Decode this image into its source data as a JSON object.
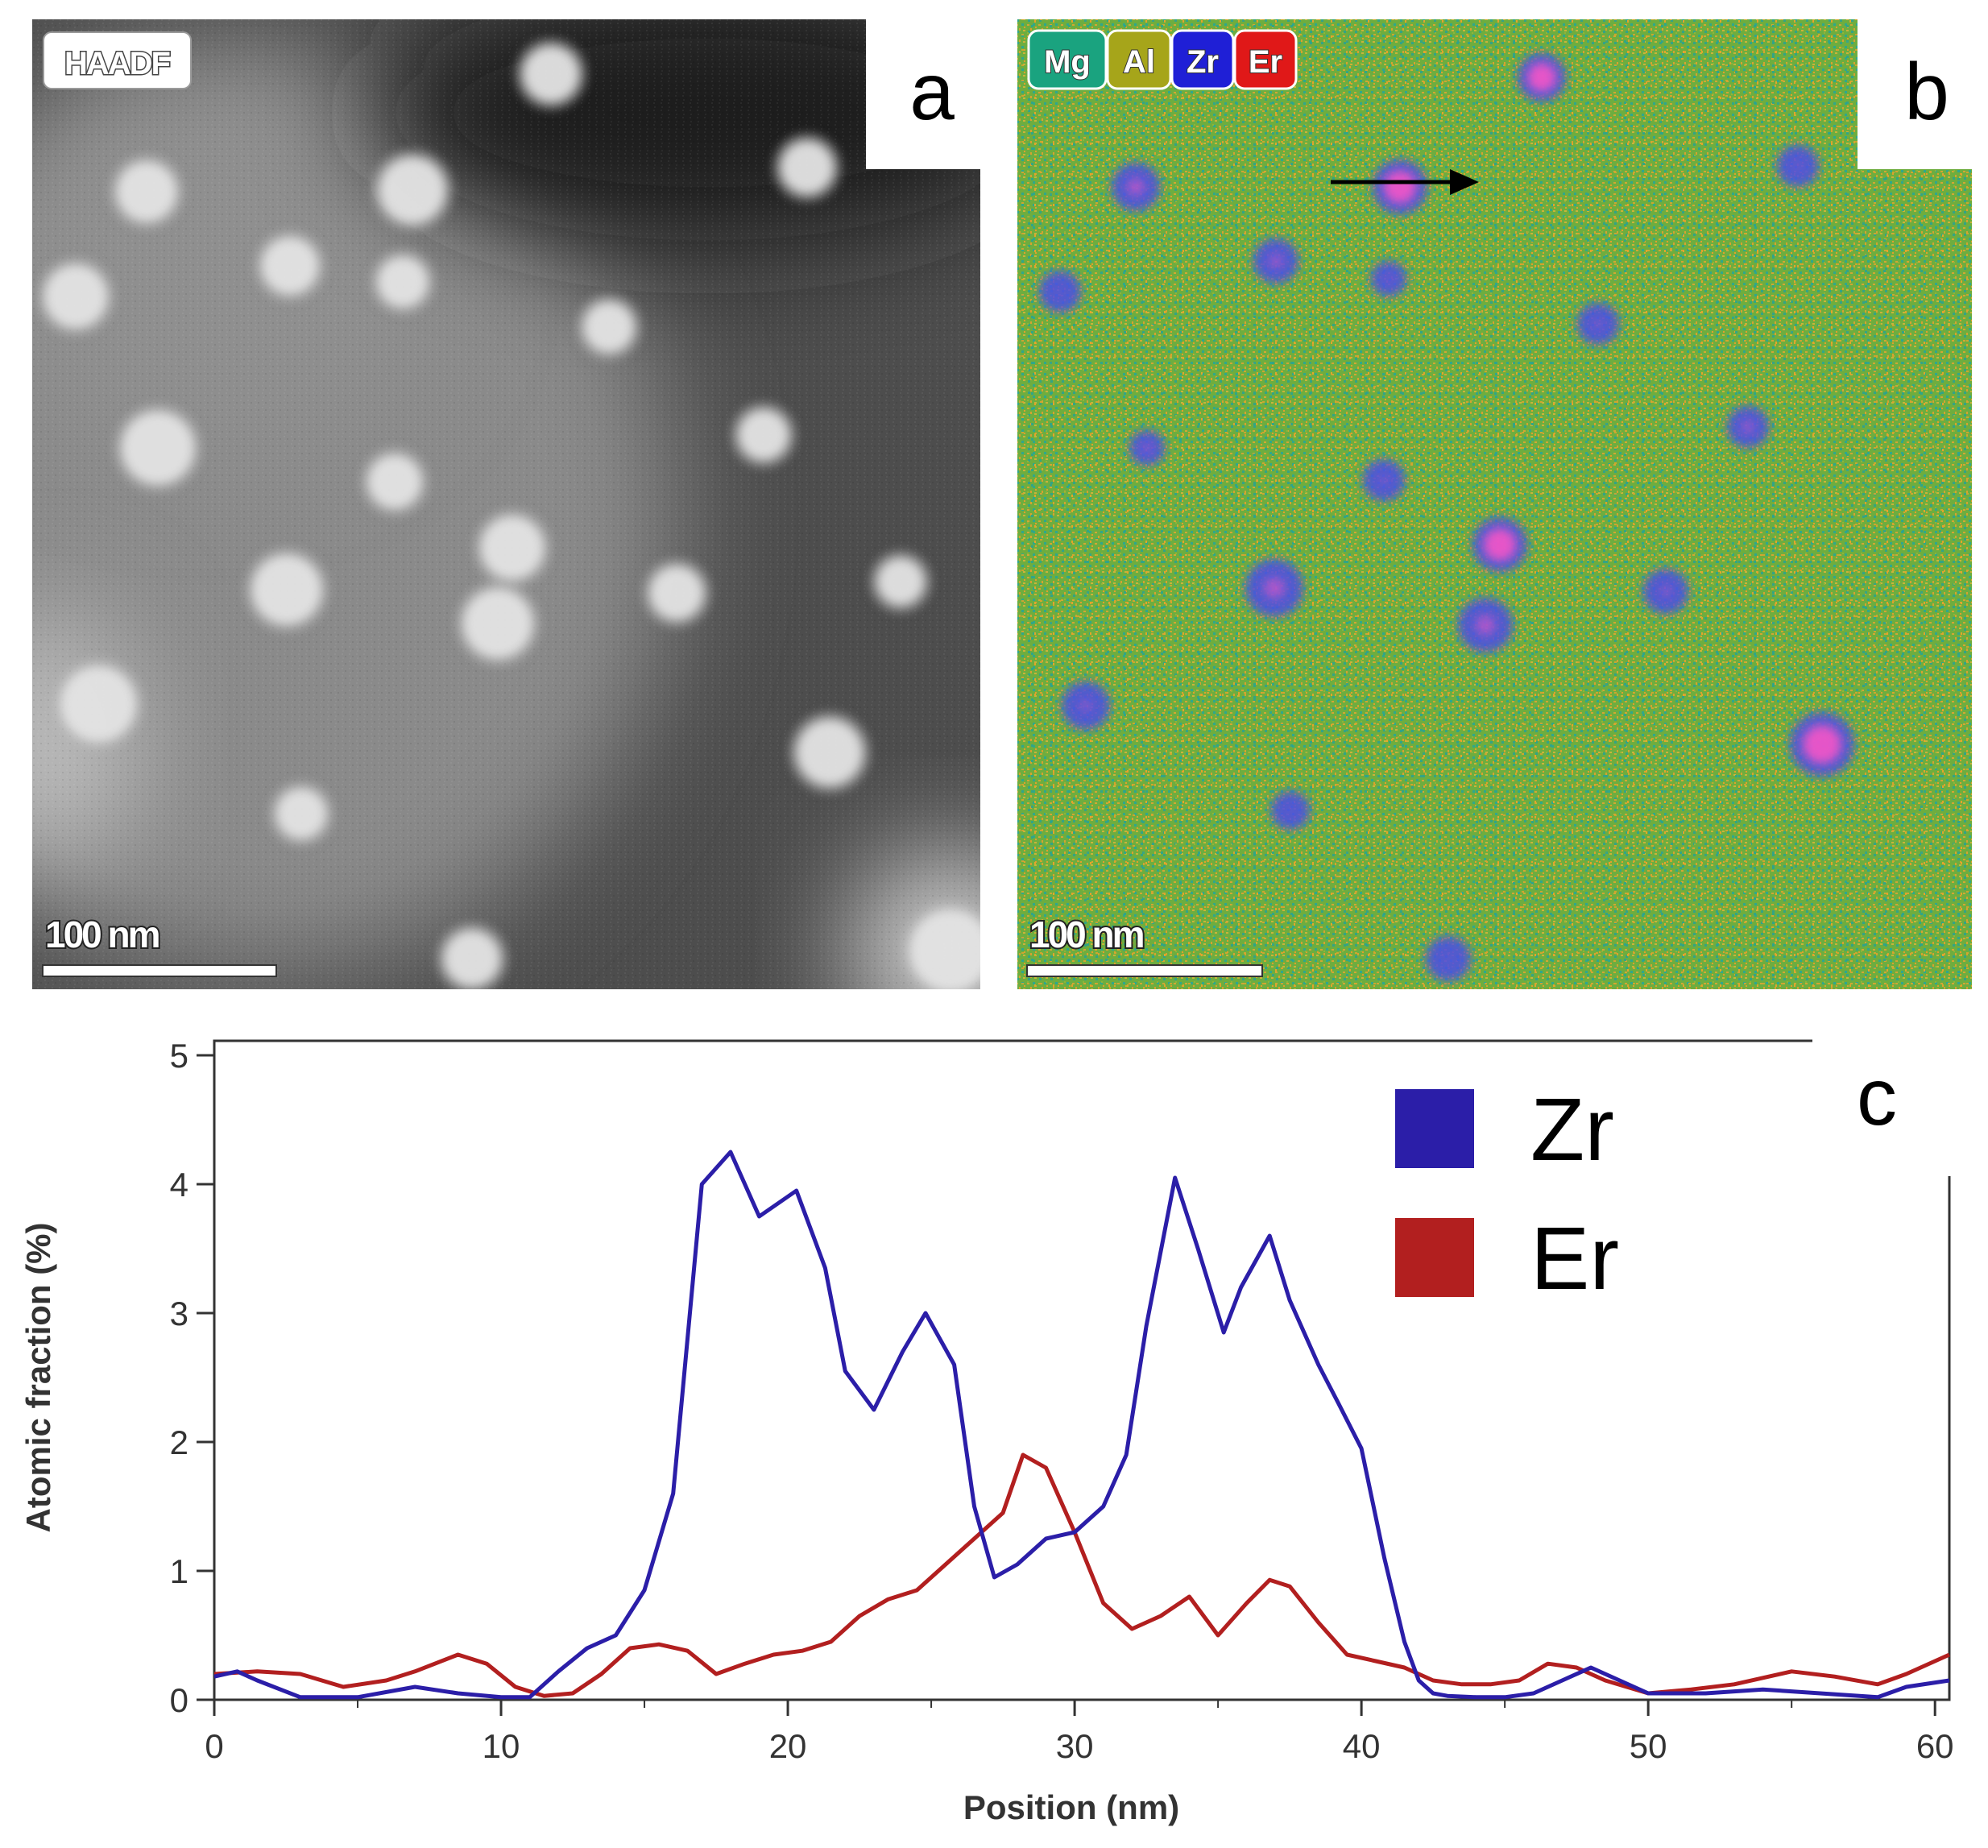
{
  "panel_a": {
    "letter": "a",
    "mode_badge": "HAADF",
    "scale_bar_label": "100 nm"
  },
  "panel_b": {
    "letter": "b",
    "element_badges": [
      {
        "label": "Mg",
        "color": "#1aa37f"
      },
      {
        "label": "Al",
        "color": "#a6a51a"
      },
      {
        "label": "Zr",
        "color": "#1f1fd6"
      },
      {
        "label": "Er",
        "color": "#e01818"
      }
    ],
    "scale_bar_label": "100 nm",
    "background_colors": {
      "green": "#5faa3c",
      "yellow": "#c9a834",
      "teal": "#2ea68a"
    },
    "zr_color": "#4b4ee6",
    "er_color": "#ff55c8"
  },
  "panel_c": {
    "letter": "c"
  },
  "chart_data": {
    "type": "line",
    "xlabel": "Position (nm)",
    "ylabel": "Atomic fraction (%)",
    "xlim": [
      0,
      60.5
    ],
    "ylim": [
      0,
      5
    ],
    "xticks": [
      "0",
      "10",
      "20",
      "30",
      "40",
      "50",
      "60"
    ],
    "yticks": [
      "0",
      "1",
      "2",
      "3",
      "4",
      "5"
    ],
    "legend_position": "top-right",
    "series": [
      {
        "name": "Zr",
        "color": "#2b1ea8",
        "x": [
          0,
          0.8,
          1.5,
          3,
          5,
          7,
          8.5,
          10,
          11,
          12,
          13,
          14,
          15,
          16,
          17,
          18,
          19,
          20.3,
          21.3,
          22,
          23,
          24,
          24.8,
          25.8,
          26.5,
          27.2,
          28,
          29,
          30,
          31,
          31.8,
          32.5,
          33.5,
          34.3,
          35.2,
          35.8,
          36.8,
          37.5,
          38.5,
          39.2,
          40,
          40.8,
          41.5,
          42,
          42.5,
          43,
          44,
          45,
          46,
          47,
          48,
          49,
          50,
          52,
          54,
          56,
          58,
          59,
          60.5
        ],
        "y": [
          0.18,
          0.22,
          0.15,
          0.02,
          0.02,
          0.1,
          0.05,
          0.02,
          0.02,
          0.22,
          0.4,
          0.5,
          0.85,
          1.6,
          4.0,
          4.25,
          3.75,
          3.95,
          3.35,
          2.55,
          2.25,
          2.7,
          3.0,
          2.6,
          1.5,
          0.95,
          1.05,
          1.25,
          1.3,
          1.5,
          1.9,
          2.9,
          4.05,
          3.5,
          2.85,
          3.2,
          3.6,
          3.1,
          2.6,
          2.3,
          1.95,
          1.1,
          0.45,
          0.15,
          0.05,
          0.03,
          0.02,
          0.02,
          0.05,
          0.15,
          0.25,
          0.15,
          0.05,
          0.05,
          0.08,
          0.05,
          0.02,
          0.1,
          0.15
        ]
      },
      {
        "name": "Er",
        "color": "#b21f1f",
        "x": [
          0,
          1.5,
          3,
          4.5,
          6,
          7,
          8.5,
          9.5,
          10.5,
          11.5,
          12.5,
          13.5,
          14.5,
          15.5,
          16.5,
          17.5,
          18.5,
          19.5,
          20.5,
          21.5,
          22.5,
          23.5,
          24.5,
          25.5,
          26.5,
          27.5,
          28.2,
          29,
          30,
          31,
          32,
          33,
          34,
          35,
          36,
          36.8,
          37.5,
          38.5,
          39.5,
          40.5,
          41.5,
          42.5,
          43.5,
          44.5,
          45.5,
          46.5,
          47.5,
          48.5,
          50,
          51.5,
          53,
          55,
          56.5,
          58,
          59,
          60.5
        ],
        "y": [
          0.2,
          0.22,
          0.2,
          0.1,
          0.15,
          0.22,
          0.35,
          0.28,
          0.1,
          0.03,
          0.05,
          0.2,
          0.4,
          0.43,
          0.38,
          0.2,
          0.28,
          0.35,
          0.38,
          0.45,
          0.65,
          0.78,
          0.85,
          1.05,
          1.25,
          1.45,
          1.9,
          1.8,
          1.3,
          0.75,
          0.55,
          0.65,
          0.8,
          0.5,
          0.75,
          0.93,
          0.88,
          0.6,
          0.35,
          0.3,
          0.25,
          0.15,
          0.12,
          0.12,
          0.15,
          0.28,
          0.25,
          0.15,
          0.05,
          0.08,
          0.12,
          0.22,
          0.18,
          0.12,
          0.2,
          0.35
        ]
      }
    ]
  }
}
